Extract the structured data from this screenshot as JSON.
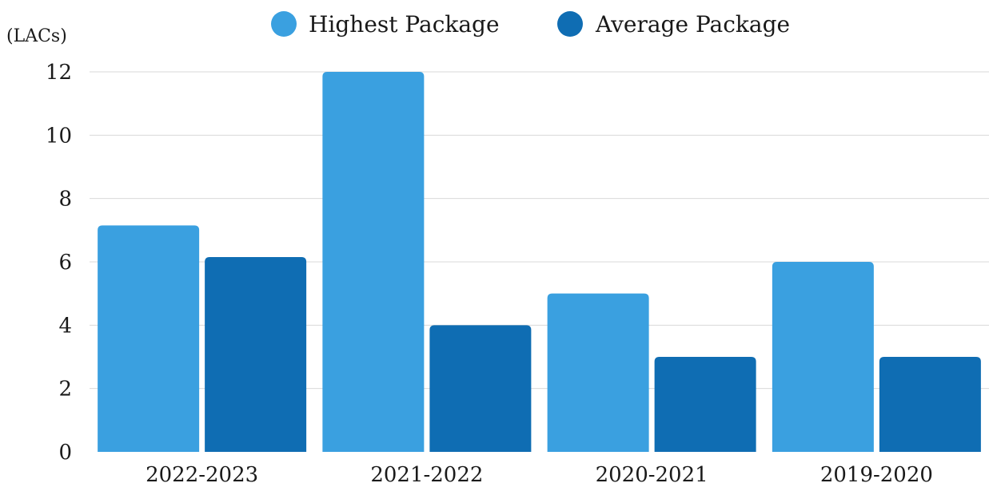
{
  "chart_data": {
    "type": "bar",
    "title": "",
    "xlabel": "",
    "ylabel": "(LACs)",
    "categories": [
      "2022-2023",
      "2021-2022",
      "2020-2021",
      "2019-2020"
    ],
    "series": [
      {
        "name": "Highest Package",
        "values": [
          7.15,
          12,
          5,
          6
        ],
        "color": "#3aa0e0"
      },
      {
        "name": "Average Package",
        "values": [
          6.15,
          4,
          3,
          3
        ],
        "color": "#0f6db3"
      }
    ],
    "ylim": [
      0,
      12
    ],
    "yticks": [
      "0",
      "2",
      "4",
      "6",
      "8",
      "10",
      "12"
    ],
    "grid": true,
    "legend_position": "top-center"
  }
}
